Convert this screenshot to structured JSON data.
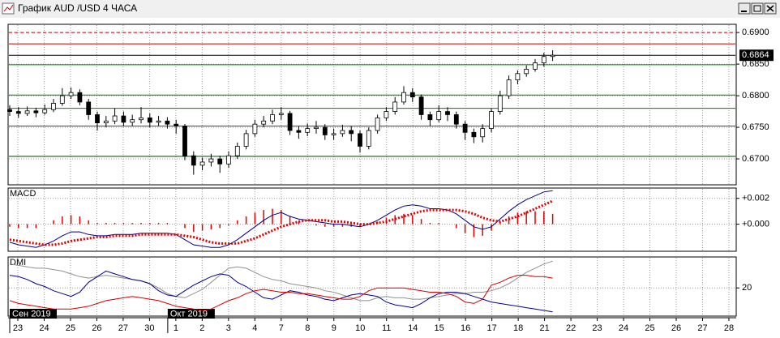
{
  "window": {
    "title": "График AUD /USD  4 ЧАСА"
  },
  "x_axis": {
    "days": [
      "23",
      "24",
      "25",
      "26",
      "27",
      "30",
      "1",
      "2",
      "3",
      "4",
      "7",
      "8",
      "9",
      "10",
      "11",
      "14",
      "15",
      "16",
      "17",
      "18",
      "21",
      "22",
      "23",
      "24",
      "25",
      "26",
      "27",
      "28"
    ],
    "months": [
      {
        "label": "Сен 2019",
        "day": 0
      },
      {
        "label": "Окт 2019",
        "day": 6
      }
    ]
  },
  "chart_data": [
    {
      "type": "candlestick",
      "color": "#000000",
      "ylim": [
        0.6659,
        0.6913
      ],
      "yticks": [
        {
          "value": 0.69,
          "label": "0.6900"
        },
        {
          "value": 0.685,
          "label": "0.6850"
        },
        {
          "value": 0.68,
          "label": "0.6800"
        },
        {
          "value": 0.675,
          "label": "0.6750"
        },
        {
          "value": 0.67,
          "label": "0.6700"
        }
      ],
      "grid": true,
      "last_price": 0.6864,
      "levels": [
        {
          "value": 0.69,
          "color": "#c00000",
          "style": "dashed"
        },
        {
          "value": 0.6882,
          "color": "#c00000",
          "style": "solid"
        },
        {
          "value": 0.6849,
          "color": "#008000",
          "style": "solid"
        },
        {
          "value": 0.6801,
          "color": "#008000",
          "style": "solid"
        },
        {
          "value": 0.678,
          "color": "#008000",
          "style": "solid"
        },
        {
          "value": 0.6752,
          "color": "#008000",
          "style": "solid"
        },
        {
          "value": 0.6704,
          "color": "#004000",
          "style": "solid"
        }
      ],
      "open": [
        0.6778,
        0.6775,
        0.6772,
        0.6776,
        0.6773,
        0.6778,
        0.6788,
        0.68,
        0.6805,
        0.679,
        0.677,
        0.6757,
        0.676,
        0.6768,
        0.6758,
        0.6762,
        0.6765,
        0.6758,
        0.676,
        0.6755,
        0.6752,
        0.6705,
        0.669,
        0.6695,
        0.67,
        0.6692,
        0.6705,
        0.672,
        0.674,
        0.6755,
        0.676,
        0.677,
        0.6772,
        0.6745,
        0.6742,
        0.6748,
        0.675,
        0.6738,
        0.674,
        0.6745,
        0.674,
        0.672,
        0.6745,
        0.6765,
        0.6775,
        0.679,
        0.6805,
        0.6798,
        0.677,
        0.6762,
        0.6775,
        0.677,
        0.6755,
        0.6742,
        0.6735,
        0.6748,
        0.6775,
        0.68,
        0.6825,
        0.6835,
        0.6842,
        0.6852,
        0.6862
      ],
      "high": [
        0.6785,
        0.6782,
        0.6783,
        0.6781,
        0.6786,
        0.6795,
        0.6812,
        0.6813,
        0.681,
        0.6795,
        0.6775,
        0.6768,
        0.678,
        0.6775,
        0.677,
        0.6782,
        0.6772,
        0.6768,
        0.6766,
        0.6762,
        0.6755,
        0.6712,
        0.6702,
        0.6708,
        0.6705,
        0.6712,
        0.6726,
        0.6746,
        0.6762,
        0.6768,
        0.6778,
        0.6782,
        0.6776,
        0.6752,
        0.6756,
        0.676,
        0.6755,
        0.6748,
        0.6754,
        0.6752,
        0.6745,
        0.675,
        0.677,
        0.6782,
        0.6798,
        0.6815,
        0.6812,
        0.6802,
        0.6775,
        0.6785,
        0.6782,
        0.6775,
        0.676,
        0.6748,
        0.6755,
        0.678,
        0.6808,
        0.6832,
        0.684,
        0.6848,
        0.6858,
        0.6868,
        0.6872
      ],
      "low": [
        0.6768,
        0.6765,
        0.6768,
        0.6766,
        0.677,
        0.6774,
        0.6784,
        0.6795,
        0.6785,
        0.6762,
        0.6745,
        0.675,
        0.6755,
        0.6752,
        0.6752,
        0.6756,
        0.675,
        0.6752,
        0.6748,
        0.674,
        0.6698,
        0.6675,
        0.6682,
        0.6688,
        0.6678,
        0.6686,
        0.67,
        0.6715,
        0.6735,
        0.675,
        0.6755,
        0.6762,
        0.6738,
        0.6732,
        0.6736,
        0.674,
        0.673,
        0.673,
        0.6735,
        0.6728,
        0.671,
        0.6715,
        0.674,
        0.676,
        0.677,
        0.6786,
        0.679,
        0.6762,
        0.6752,
        0.6758,
        0.676,
        0.6748,
        0.673,
        0.6725,
        0.6726,
        0.6742,
        0.677,
        0.6795,
        0.6818,
        0.683,
        0.6838,
        0.6846,
        0.6855
      ],
      "close": [
        0.6775,
        0.6772,
        0.6776,
        0.6773,
        0.6778,
        0.6788,
        0.68,
        0.6805,
        0.679,
        0.677,
        0.6757,
        0.676,
        0.6768,
        0.6758,
        0.6762,
        0.6765,
        0.6758,
        0.676,
        0.6755,
        0.6752,
        0.6705,
        0.669,
        0.6695,
        0.67,
        0.6692,
        0.6705,
        0.672,
        0.674,
        0.6755,
        0.676,
        0.677,
        0.6772,
        0.6745,
        0.6742,
        0.6748,
        0.675,
        0.6738,
        0.674,
        0.6745,
        0.674,
        0.672,
        0.6745,
        0.6765,
        0.6775,
        0.679,
        0.6805,
        0.6798,
        0.677,
        0.6762,
        0.6775,
        0.677,
        0.6755,
        0.6742,
        0.6735,
        0.6748,
        0.6775,
        0.68,
        0.6825,
        0.6835,
        0.6842,
        0.6852,
        0.6862,
        0.6864
      ]
    },
    {
      "type": "macd",
      "label": "MACD",
      "ylim": [
        -0.0021,
        0.0028
      ],
      "yticks": [
        {
          "value": 0.002,
          "label": "+0.002"
        },
        {
          "value": 0,
          "label": "+0.000"
        }
      ],
      "grid": true,
      "histogram": {
        "color": "#e00000",
        "values": [
          -0.0002,
          -0.0003,
          -0.0003,
          -0.0003,
          0,
          0.0003,
          0.0006,
          0.0007,
          0.0006,
          0.0003,
          0.0001,
          0.0001,
          0.0001,
          0.0001,
          0.0001,
          0.0001,
          0.0001,
          0.0001,
          0.0001,
          0,
          -0.0003,
          -0.0006,
          -0.0005,
          -0.0004,
          -0.0003,
          -0.0001,
          0.0003,
          0.0006,
          0.0009,
          0.0011,
          0.0012,
          0.0011,
          0.0006,
          0.0002,
          0,
          -0.0001,
          -0.0002,
          -0.0002,
          -0.0002,
          -0.0002,
          -0.0002,
          0,
          0.0002,
          0.0005,
          0.0007,
          0.0008,
          0.0007,
          0.0004,
          0.0001,
          0.0001,
          0,
          -0.0003,
          -0.0007,
          -0.001,
          -0.0009,
          -0.0005,
          0.0002,
          0.0006,
          0.0009,
          0.001,
          0.001,
          0.001,
          0.0008
        ]
      },
      "series": [
        {
          "color": "#000080",
          "style": "solid",
          "values": [
            -0.0014,
            -0.0016,
            -0.0017,
            -0.0018,
            -0.0016,
            -0.0013,
            -0.0009,
            -0.0006,
            -0.0006,
            -0.0008,
            -0.0009,
            -0.0009,
            -0.0008,
            -0.0008,
            -0.0008,
            -0.0007,
            -0.0007,
            -0.0007,
            -0.0007,
            -0.0008,
            -0.0012,
            -0.0016,
            -0.0017,
            -0.0018,
            -0.0018,
            -0.0016,
            -0.0012,
            -0.0007,
            -0.0002,
            0.0003,
            0.0007,
            0.0009,
            0.0006,
            0.0004,
            0.0003,
            0.0002,
            0.0001,
            0,
            0,
            -0.0001,
            -0.0002,
            0,
            0.0003,
            0.0007,
            0.0011,
            0.0014,
            0.0015,
            0.0014,
            0.0012,
            0.0012,
            0.0011,
            0.0008,
            0.0003,
            -0.0002,
            -0.0004,
            -0.0002,
            0.0004,
            0.001,
            0.0015,
            0.0019,
            0.0022,
            0.0025,
            0.0026
          ]
        },
        {
          "color": "#e00000",
          "style": "dotted",
          "values": [
            -0.0012,
            -0.0013,
            -0.0014,
            -0.0015,
            -0.0016,
            -0.0016,
            -0.0015,
            -0.0013,
            -0.0012,
            -0.0011,
            -0.001,
            -0.001,
            -0.0009,
            -0.0009,
            -0.0009,
            -0.0008,
            -0.0008,
            -0.0008,
            -0.0008,
            -0.0008,
            -0.0009,
            -0.001,
            -0.0012,
            -0.0014,
            -0.0015,
            -0.0015,
            -0.0015,
            -0.0013,
            -0.0011,
            -0.0008,
            -0.0005,
            -0.0002,
            0,
            0.0002,
            0.0003,
            0.0003,
            0.0003,
            0.0002,
            0.0002,
            0.0001,
            0,
            0,
            0.0001,
            0.0002,
            0.0004,
            0.0006,
            0.0008,
            0.001,
            0.0011,
            0.0011,
            0.0011,
            0.0011,
            0.001,
            0.0008,
            0.0005,
            0.0003,
            0.0002,
            0.0004,
            0.0006,
            0.0009,
            0.0012,
            0.0015,
            0.0018
          ]
        }
      ]
    },
    {
      "type": "dmi",
      "label": "DMI",
      "ylim": [
        0,
        42
      ],
      "yticks": [
        20
      ],
      "grid": true,
      "series": [
        {
          "color": "#909090",
          "values": [
            37,
            36,
            35,
            34,
            34,
            33,
            32,
            30,
            28,
            27,
            28,
            29,
            28,
            27,
            26,
            25,
            23,
            20,
            16,
            14,
            13,
            16,
            19,
            24,
            29,
            34,
            35,
            34,
            31,
            28,
            26,
            25,
            23,
            22,
            21,
            20,
            18,
            17,
            15,
            13,
            11,
            11,
            13,
            14,
            13,
            13,
            12,
            12,
            13,
            14,
            15,
            16,
            16,
            17,
            17,
            18,
            20,
            23,
            27,
            31,
            34,
            37,
            39
          ]
        },
        {
          "color": "#000090",
          "values": [
            29,
            28,
            26,
            23,
            21,
            18,
            16,
            14,
            17,
            24,
            28,
            32,
            30,
            28,
            26,
            25,
            23,
            18,
            15,
            14,
            18,
            22,
            25,
            28,
            30,
            29,
            24,
            21,
            17,
            13,
            12,
            15,
            18,
            17,
            15,
            14,
            12,
            11,
            13,
            15,
            16,
            15,
            14,
            10,
            8,
            7,
            6,
            9,
            13,
            16,
            17,
            17,
            16,
            14,
            12,
            10,
            9,
            8,
            7,
            6,
            5,
            4,
            3
          ]
        },
        {
          "color": "#d00000",
          "values": [
            11,
            9,
            8,
            7,
            6,
            5,
            5,
            5,
            6,
            7,
            9,
            11,
            12,
            13,
            14,
            13,
            12,
            11,
            9,
            7,
            6,
            5,
            4,
            5,
            8,
            11,
            13,
            16,
            18,
            19,
            18,
            17,
            17,
            16,
            16,
            15,
            14,
            13,
            12,
            12,
            14,
            18,
            20,
            20,
            20,
            20,
            19,
            18,
            17,
            17,
            16,
            14,
            10,
            9,
            12,
            22,
            24,
            27,
            29,
            29,
            28,
            28,
            27
          ]
        }
      ]
    }
  ]
}
